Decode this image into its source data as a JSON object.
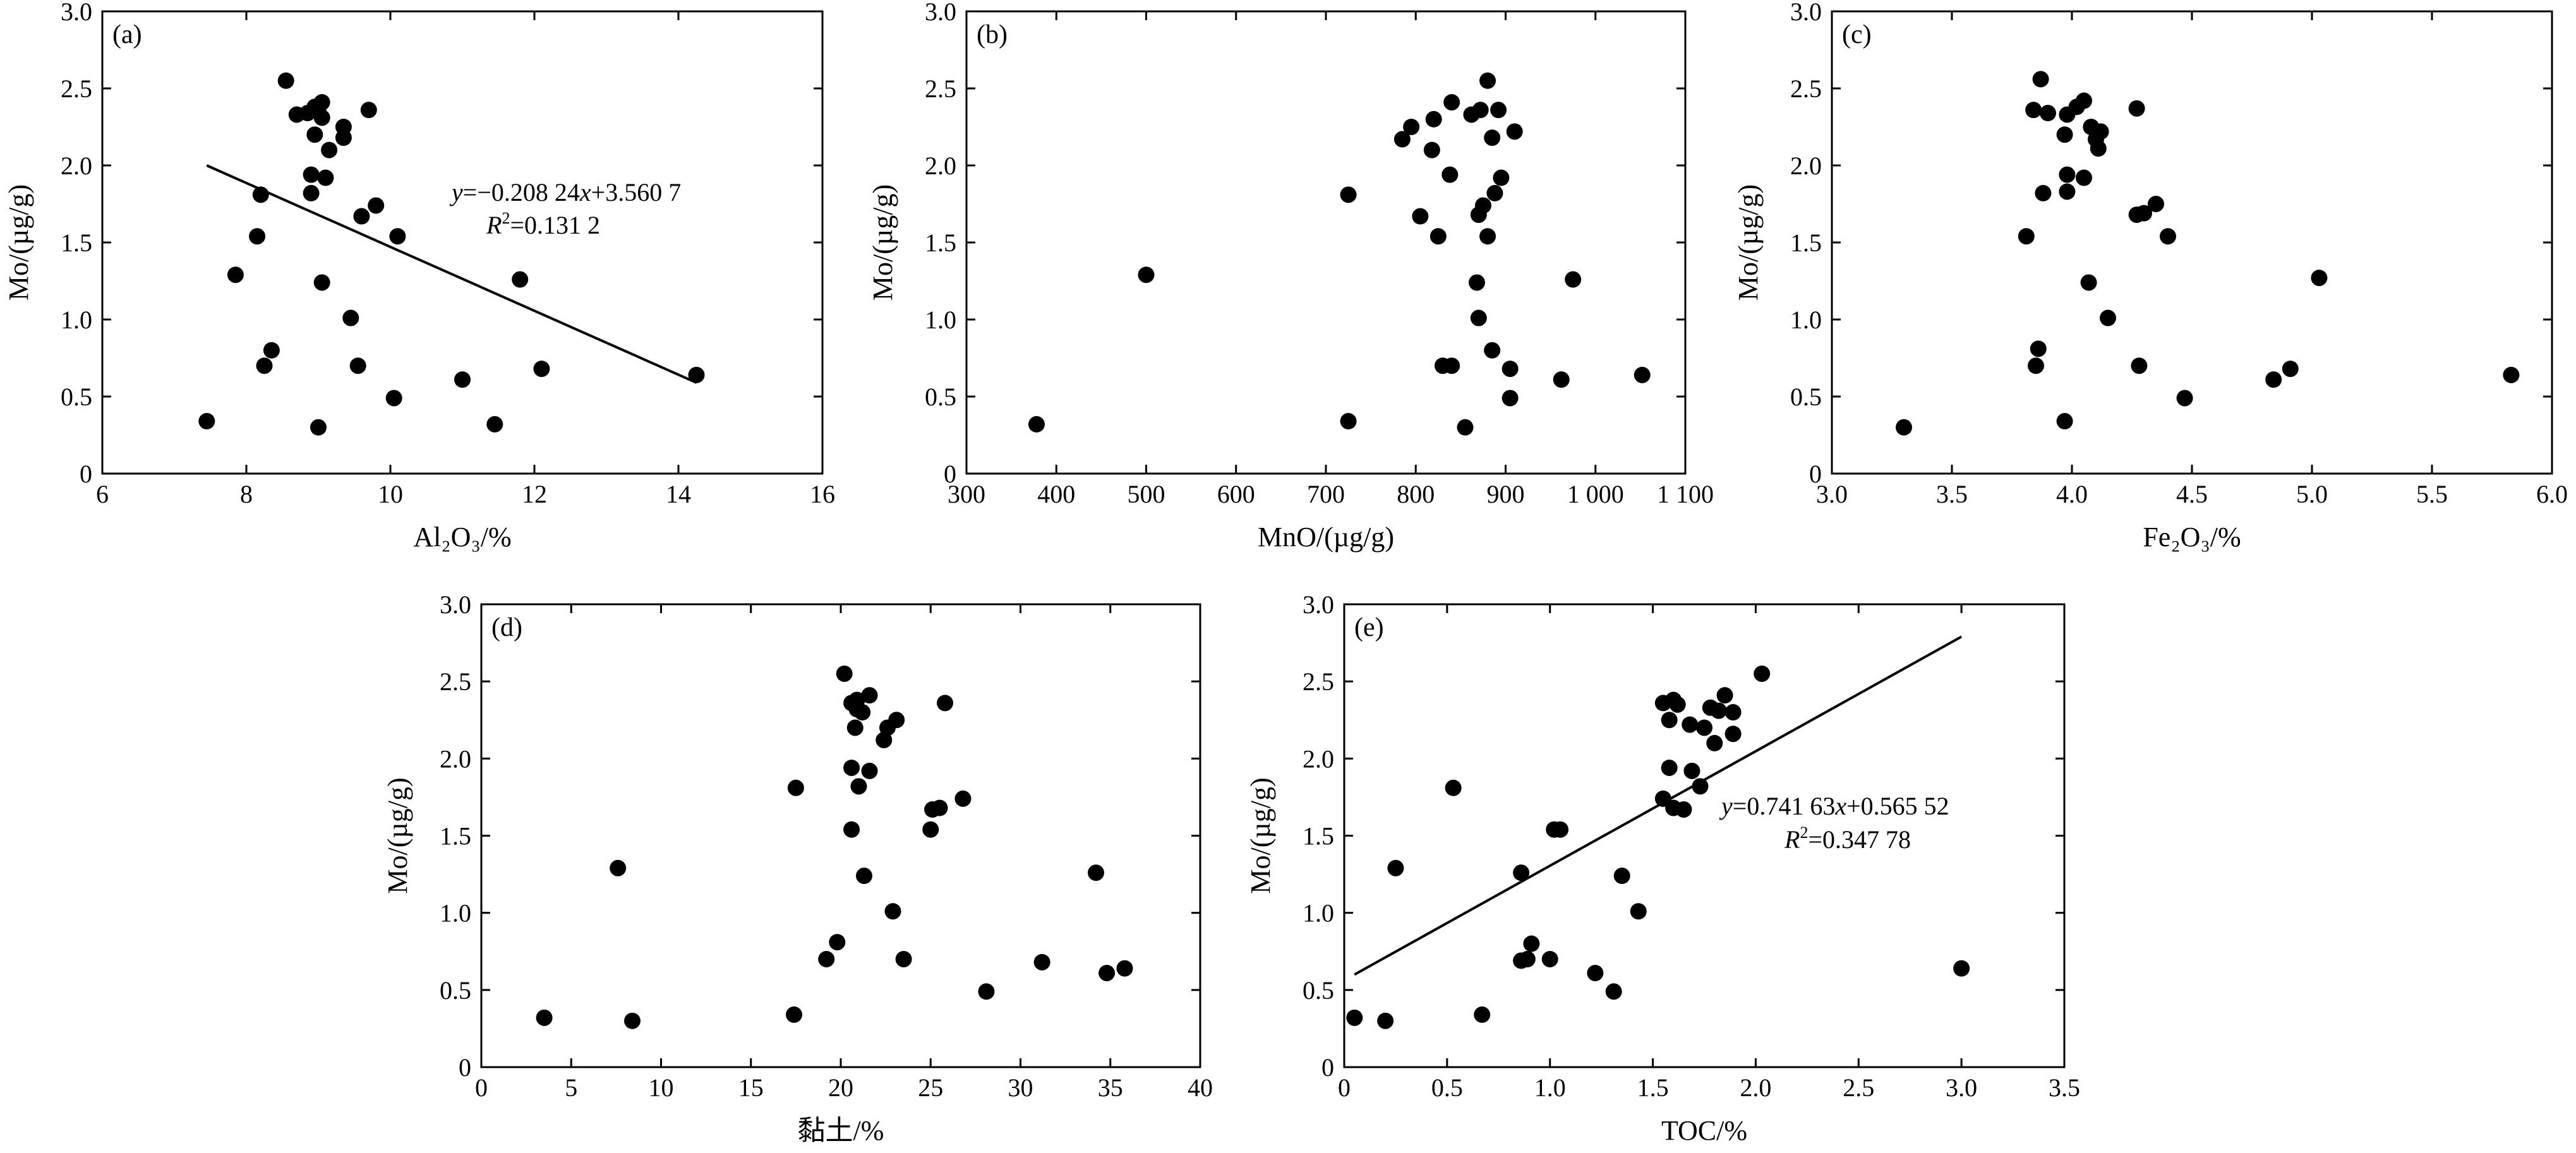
{
  "figure": {
    "y_title": "Mo/(µg/g)"
  },
  "chart_data": [
    {
      "type": "scatter",
      "panel_label": "(a)",
      "xlabel": "Al₂O₃/%",
      "ylabel": "Mo/(µg/g)",
      "xlim": [
        6,
        16
      ],
      "ylim": [
        0,
        3.0
      ],
      "xticks": [
        6,
        8,
        10,
        12,
        14,
        16
      ],
      "xtick_labels": [
        "6",
        "8",
        "10",
        "12",
        "14",
        "16"
      ],
      "yticks": [
        0,
        0.5,
        1.0,
        1.5,
        2.0,
        2.5,
        3.0
      ],
      "ytick_labels": [
        "0",
        "0.5",
        "1.0",
        "1.5",
        "2.0",
        "2.5",
        "3.0"
      ],
      "points": [
        [
          8.55,
          2.55
        ],
        [
          8.7,
          2.33
        ],
        [
          8.85,
          2.34
        ],
        [
          8.95,
          2.38
        ],
        [
          9.05,
          2.41
        ],
        [
          9.05,
          2.31
        ],
        [
          9.0,
          2.35
        ],
        [
          9.15,
          2.1
        ],
        [
          9.35,
          2.25
        ],
        [
          9.35,
          2.18
        ],
        [
          9.7,
          2.36
        ],
        [
          8.95,
          2.2
        ],
        [
          8.9,
          1.94
        ],
        [
          9.1,
          1.92
        ],
        [
          8.9,
          1.82
        ],
        [
          9.6,
          1.67
        ],
        [
          9.8,
          1.74
        ],
        [
          10.1,
          1.54
        ],
        [
          8.2,
          1.81
        ],
        [
          8.15,
          1.54
        ],
        [
          7.85,
          1.29
        ],
        [
          9.05,
          1.24
        ],
        [
          9.45,
          1.01
        ],
        [
          8.35,
          0.8
        ],
        [
          8.25,
          0.7
        ],
        [
          9.55,
          0.7
        ],
        [
          10.05,
          0.49
        ],
        [
          11.0,
          0.61
        ],
        [
          12.1,
          0.68
        ],
        [
          11.8,
          1.26
        ],
        [
          14.25,
          0.64
        ],
        [
          7.45,
          0.34
        ],
        [
          9.0,
          0.3
        ],
        [
          11.45,
          0.32
        ]
      ],
      "fit_line": {
        "x": [
          7.45,
          14.25
        ],
        "y": [
          2.0,
          0.59
        ]
      },
      "equation": "y=−0.208 24x+3.560 7",
      "r2_value": "=0.131 2"
    },
    {
      "type": "scatter",
      "panel_label": "(b)",
      "xlabel": "MnO/(µg/g)",
      "ylabel": "Mo/(µg/g)",
      "xlim": [
        300,
        1100
      ],
      "ylim": [
        0,
        3.0
      ],
      "xticks": [
        300,
        400,
        500,
        600,
        700,
        800,
        900,
        1000,
        1100
      ],
      "xtick_labels": [
        "300",
        "400",
        "500",
        "600",
        "700",
        "800",
        "900",
        "1 000",
        "1 100"
      ],
      "yticks": [
        0,
        0.5,
        1.0,
        1.5,
        2.0,
        2.5,
        3.0
      ],
      "ytick_labels": [
        "0",
        "0.5",
        "1.0",
        "1.5",
        "2.0",
        "2.5",
        "3.0"
      ],
      "points": [
        [
          880,
          2.55
        ],
        [
          840,
          2.41
        ],
        [
          862,
          2.33
        ],
        [
          872,
          2.36
        ],
        [
          892,
          2.36
        ],
        [
          820,
          2.3
        ],
        [
          795,
          2.25
        ],
        [
          785,
          2.17
        ],
        [
          818,
          2.1
        ],
        [
          885,
          2.18
        ],
        [
          910,
          2.22
        ],
        [
          838,
          1.94
        ],
        [
          895,
          1.92
        ],
        [
          725,
          1.81
        ],
        [
          888,
          1.82
        ],
        [
          870,
          1.68
        ],
        [
          875,
          1.74
        ],
        [
          805,
          1.67
        ],
        [
          825,
          1.54
        ],
        [
          880,
          1.54
        ],
        [
          500,
          1.29
        ],
        [
          868,
          1.24
        ],
        [
          975,
          1.26
        ],
        [
          870,
          1.01
        ],
        [
          885,
          0.8
        ],
        [
          830,
          0.7
        ],
        [
          840,
          0.7
        ],
        [
          905,
          0.68
        ],
        [
          905,
          0.49
        ],
        [
          962,
          0.61
        ],
        [
          1052,
          0.64
        ],
        [
          378,
          0.32
        ],
        [
          725,
          0.34
        ],
        [
          855,
          0.3
        ]
      ]
    },
    {
      "type": "scatter",
      "panel_label": "(c)",
      "xlabel": "Fe₂O₃/%",
      "ylabel": "Mo/(µg/g)",
      "xlim": [
        3.0,
        6.0
      ],
      "ylim": [
        0,
        3.0
      ],
      "xticks": [
        3.0,
        3.5,
        4.0,
        4.5,
        5.0,
        5.5,
        6.0
      ],
      "xtick_labels": [
        "3.0",
        "3.5",
        "4.0",
        "4.5",
        "5.0",
        "5.5",
        "6.0"
      ],
      "yticks": [
        0,
        0.5,
        1.0,
        1.5,
        2.0,
        2.5,
        3.0
      ],
      "ytick_labels": [
        "0",
        "0.5",
        "1.0",
        "1.5",
        "2.0",
        "2.5",
        "3.0"
      ],
      "points": [
        [
          3.87,
          2.56
        ],
        [
          3.84,
          2.36
        ],
        [
          3.9,
          2.34
        ],
        [
          3.98,
          2.33
        ],
        [
          4.02,
          2.38
        ],
        [
          4.05,
          2.42
        ],
        [
          4.27,
          2.37
        ],
        [
          3.97,
          2.2
        ],
        [
          4.08,
          2.25
        ],
        [
          4.12,
          2.22
        ],
        [
          4.1,
          2.17
        ],
        [
          4.11,
          2.11
        ],
        [
          3.98,
          1.94
        ],
        [
          4.05,
          1.92
        ],
        [
          3.88,
          1.82
        ],
        [
          3.98,
          1.83
        ],
        [
          4.27,
          1.68
        ],
        [
          4.3,
          1.69
        ],
        [
          4.35,
          1.75
        ],
        [
          3.81,
          1.54
        ],
        [
          4.4,
          1.54
        ],
        [
          4.07,
          1.24
        ],
        [
          5.03,
          1.27
        ],
        [
          4.15,
          1.01
        ],
        [
          3.86,
          0.81
        ],
        [
          3.85,
          0.7
        ],
        [
          4.28,
          0.7
        ],
        [
          4.91,
          0.68
        ],
        [
          4.47,
          0.49
        ],
        [
          4.84,
          0.61
        ],
        [
          5.83,
          0.64
        ],
        [
          3.3,
          0.3
        ],
        [
          3.97,
          0.34
        ]
      ]
    },
    {
      "type": "scatter",
      "panel_label": "(d)",
      "xlabel": "黏土/%",
      "ylabel": "Mo/(µg/g)",
      "xlim": [
        0,
        40
      ],
      "ylim": [
        0,
        3.0
      ],
      "xticks": [
        0,
        5,
        10,
        15,
        20,
        25,
        30,
        35,
        40
      ],
      "xtick_labels": [
        "0",
        "5",
        "10",
        "15",
        "20",
        "25",
        "30",
        "35",
        "40"
      ],
      "yticks": [
        0,
        0.5,
        1.0,
        1.5,
        2.0,
        2.5,
        3.0
      ],
      "ytick_labels": [
        "0",
        "0.5",
        "1.0",
        "1.5",
        "2.0",
        "2.5",
        "3.0"
      ],
      "points": [
        [
          20.2,
          2.55
        ],
        [
          20.6,
          2.36
        ],
        [
          20.9,
          2.32
        ],
        [
          21.2,
          2.3
        ],
        [
          21.6,
          2.41
        ],
        [
          20.9,
          2.38
        ],
        [
          22.6,
          2.2
        ],
        [
          23.1,
          2.25
        ],
        [
          22.4,
          2.12
        ],
        [
          20.8,
          2.2
        ],
        [
          25.8,
          2.36
        ],
        [
          20.6,
          1.94
        ],
        [
          21.6,
          1.92
        ],
        [
          21.0,
          1.82
        ],
        [
          17.5,
          1.81
        ],
        [
          25.1,
          1.67
        ],
        [
          25.5,
          1.68
        ],
        [
          26.8,
          1.74
        ],
        [
          20.6,
          1.54
        ],
        [
          25.0,
          1.54
        ],
        [
          7.6,
          1.29
        ],
        [
          21.3,
          1.24
        ],
        [
          34.2,
          1.26
        ],
        [
          22.9,
          1.01
        ],
        [
          19.8,
          0.81
        ],
        [
          19.2,
          0.7
        ],
        [
          23.5,
          0.7
        ],
        [
          31.2,
          0.68
        ],
        [
          28.1,
          0.49
        ],
        [
          34.8,
          0.61
        ],
        [
          35.8,
          0.64
        ],
        [
          3.5,
          0.32
        ],
        [
          8.4,
          0.3
        ],
        [
          17.4,
          0.34
        ]
      ]
    },
    {
      "type": "scatter",
      "panel_label": "(e)",
      "xlabel": "TOC/%",
      "ylabel": "Mo/(µg/g)",
      "xlim": [
        0,
        3.5
      ],
      "ylim": [
        0,
        3.0
      ],
      "xticks": [
        0,
        0.5,
        1.0,
        1.5,
        2.0,
        2.5,
        3.0,
        3.5
      ],
      "xtick_labels": [
        "0",
        "0.5",
        "1.0",
        "1.5",
        "2.0",
        "2.5",
        "3.0",
        "3.5"
      ],
      "yticks": [
        0,
        0.5,
        1.0,
        1.5,
        2.0,
        2.5,
        3.0
      ],
      "ytick_labels": [
        "0",
        "0.5",
        "1.0",
        "1.5",
        "2.0",
        "2.5",
        "3.0"
      ],
      "points": [
        [
          2.03,
          2.55
        ],
        [
          1.55,
          2.36
        ],
        [
          1.62,
          2.35
        ],
        [
          1.6,
          2.38
        ],
        [
          1.85,
          2.41
        ],
        [
          1.78,
          2.33
        ],
        [
          1.82,
          2.31
        ],
        [
          1.89,
          2.3
        ],
        [
          1.58,
          2.25
        ],
        [
          1.68,
          2.22
        ],
        [
          1.75,
          2.2
        ],
        [
          1.89,
          2.16
        ],
        [
          1.8,
          2.1
        ],
        [
          1.58,
          1.94
        ],
        [
          1.69,
          1.92
        ],
        [
          0.53,
          1.81
        ],
        [
          1.73,
          1.82
        ],
        [
          1.55,
          1.74
        ],
        [
          1.6,
          1.68
        ],
        [
          1.65,
          1.67
        ],
        [
          1.02,
          1.54
        ],
        [
          1.05,
          1.54
        ],
        [
          0.25,
          1.29
        ],
        [
          0.86,
          1.26
        ],
        [
          1.35,
          1.24
        ],
        [
          1.43,
          1.01
        ],
        [
          0.91,
          0.8
        ],
        [
          0.86,
          0.69
        ],
        [
          0.89,
          0.7
        ],
        [
          1.0,
          0.7
        ],
        [
          1.31,
          0.49
        ],
        [
          1.22,
          0.61
        ],
        [
          3.0,
          0.64
        ],
        [
          0.05,
          0.32
        ],
        [
          0.2,
          0.3
        ],
        [
          0.67,
          0.34
        ]
      ],
      "fit_line": {
        "x": [
          0.05,
          3.0
        ],
        "y": [
          0.6,
          2.79
        ]
      },
      "equation": "y=0.741 63x+0.565 52",
      "r2_value": "=0.347 78"
    }
  ]
}
